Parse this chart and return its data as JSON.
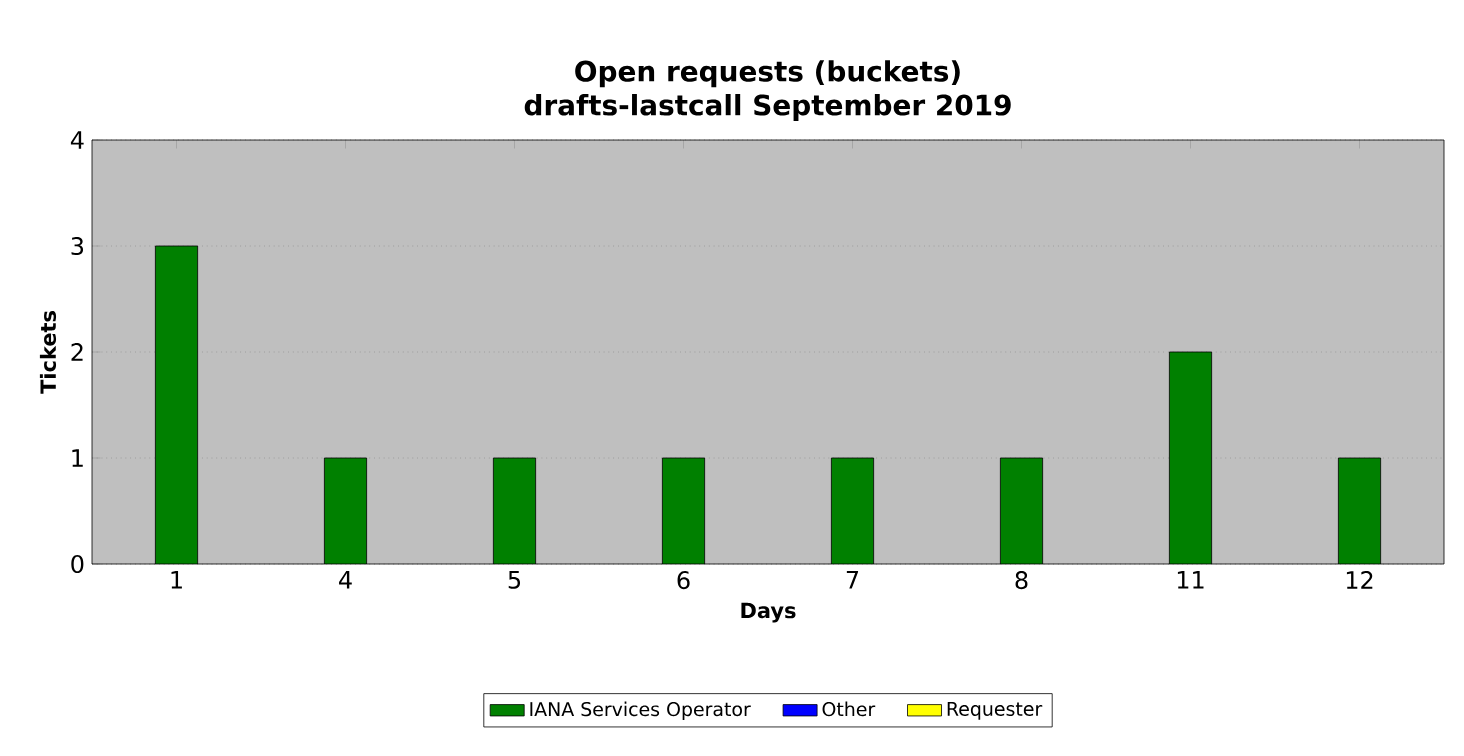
{
  "chart_data": {
    "type": "bar",
    "title": "Open requests (buckets)",
    "subtitle": "drafts-lastcall September 2019",
    "xlabel": "Days",
    "ylabel": "Tickets",
    "categories": [
      "1",
      "4",
      "5",
      "6",
      "7",
      "8",
      "11",
      "12"
    ],
    "stacked": true,
    "series": [
      {
        "name": "IANA Services Operator",
        "color": "#008000",
        "values": [
          3,
          1,
          1,
          1,
          1,
          1,
          2,
          1
        ]
      },
      {
        "name": "Other",
        "color": "#0000ff",
        "values": [
          0,
          0,
          0,
          0,
          0,
          0,
          0,
          0
        ]
      },
      {
        "name": "Requester",
        "color": "#ffff00",
        "values": [
          0,
          0,
          0,
          0,
          0,
          0,
          0,
          0
        ]
      }
    ],
    "ylim": [
      0,
      4
    ],
    "yticks": [
      0,
      1,
      2,
      3,
      4
    ],
    "grid": "y",
    "legend": "bottom"
  }
}
